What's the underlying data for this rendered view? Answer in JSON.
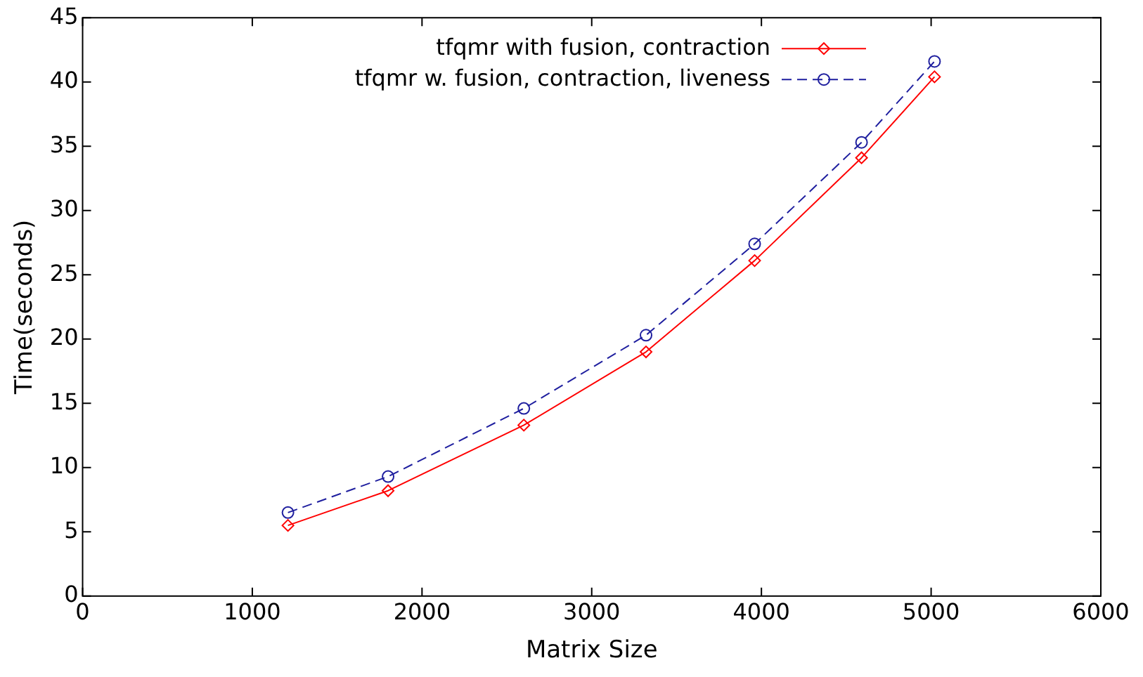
{
  "chart_data": {
    "type": "line",
    "xlabel": "Matrix Size",
    "ylabel": "Time(seconds)",
    "x": [
      1210,
      1800,
      2600,
      3320,
      3960,
      4590,
      5020
    ],
    "series": [
      {
        "name": "tfqmr with fusion, contraction",
        "color": "#ff0000",
        "marker": "diamond",
        "line_style": "solid",
        "values": [
          5.5,
          8.2,
          13.3,
          19.0,
          26.1,
          34.1,
          40.4
        ]
      },
      {
        "name": "tfqmr w. fusion, contraction, liveness",
        "color": "#1f1f9f",
        "marker": "circle",
        "line_style": "dashed",
        "values": [
          6.5,
          9.3,
          14.6,
          20.3,
          27.4,
          35.3,
          41.6
        ]
      }
    ],
    "xlim": [
      0,
      6000
    ],
    "xticks": [
      0,
      1000,
      2000,
      3000,
      4000,
      5000,
      6000
    ],
    "ylim": [
      0,
      45
    ],
    "yticks": [
      0,
      5,
      10,
      15,
      20,
      25,
      30,
      35,
      40,
      45
    ],
    "grid": false,
    "legend": "top right"
  }
}
